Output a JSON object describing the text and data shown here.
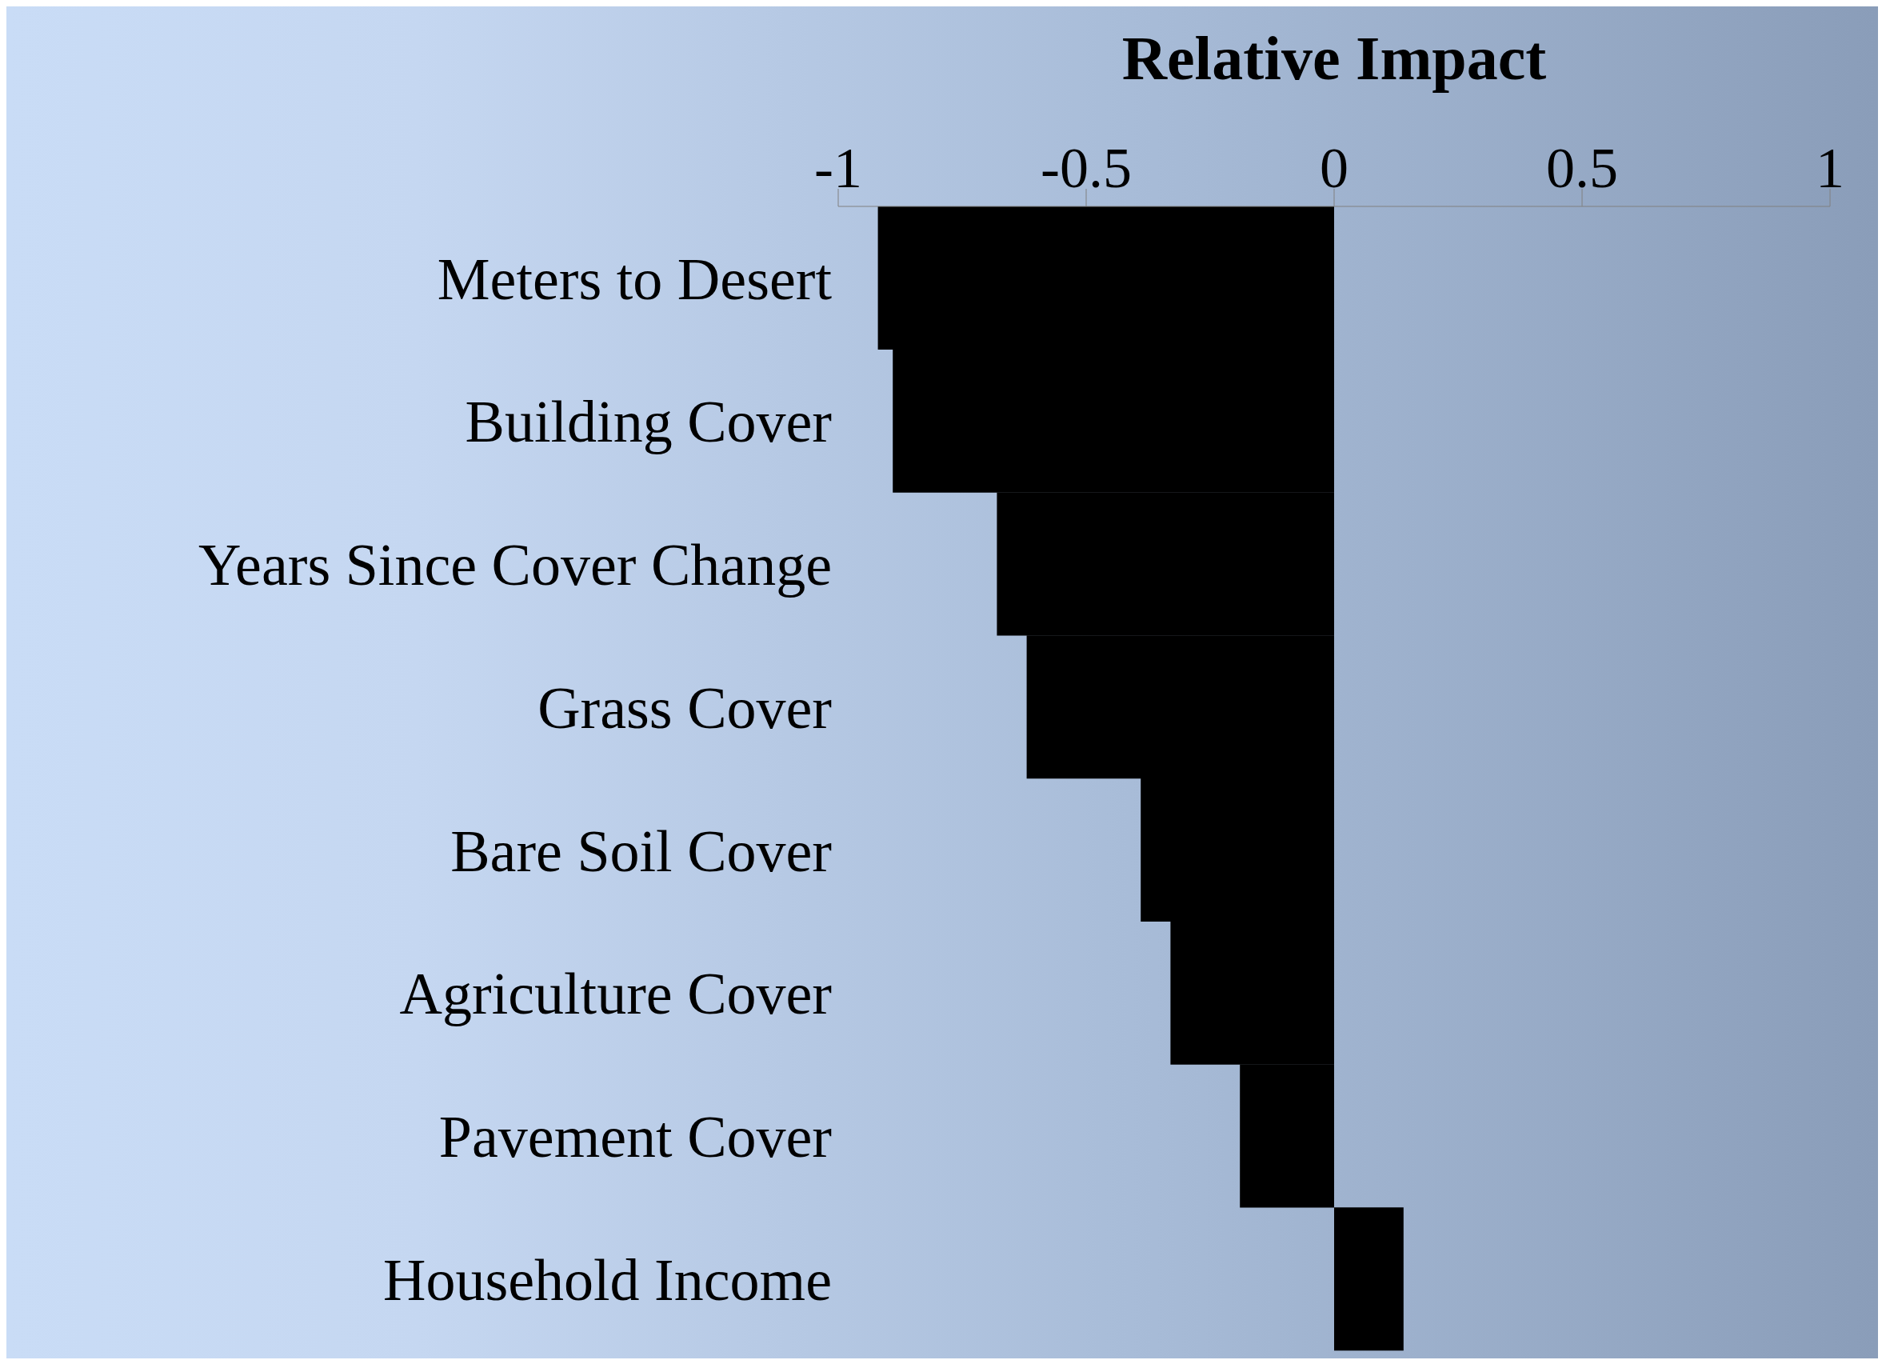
{
  "chart_data": {
    "type": "bar",
    "orientation": "horizontal",
    "xlabel": "Relative Impact",
    "categories": [
      "Meters to Desert",
      "Building Cover",
      "Years Since Cover Change",
      "Grass Cover",
      "Bare Soil Cover",
      "Agriculture Cover",
      "Pavement Cover",
      "Household Income"
    ],
    "values": [
      -0.92,
      -0.89,
      -0.68,
      -0.62,
      -0.39,
      -0.33,
      -0.19,
      0.14
    ],
    "color": "#000000",
    "xlim": [
      -1,
      1
    ],
    "xticks": [
      -1,
      -0.5,
      0,
      0.5,
      1
    ],
    "grid": false
  }
}
